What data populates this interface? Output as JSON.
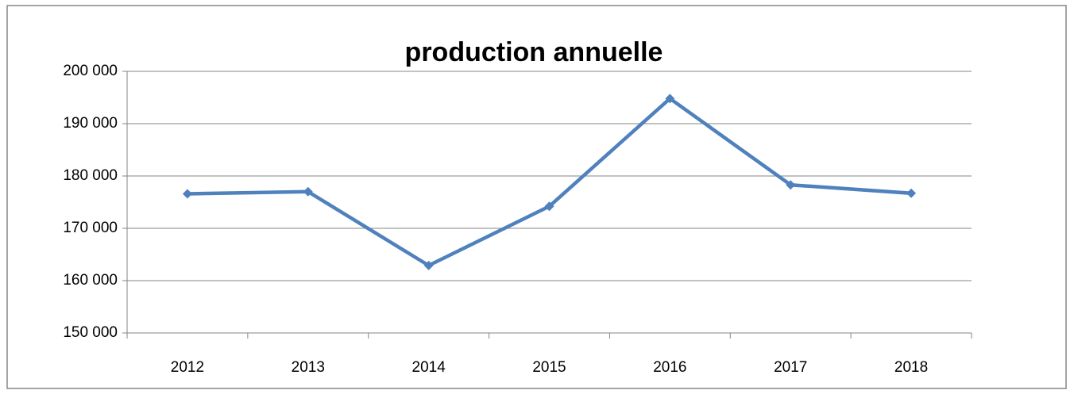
{
  "chart_data": {
    "type": "line",
    "title": "production annuelle",
    "categories": [
      "2012",
      "2013",
      "2014",
      "2015",
      "2016",
      "2017",
      "2018"
    ],
    "series": [
      {
        "name": "production",
        "color": "#4f81bd",
        "values": [
          176600,
          177000,
          162900,
          174200,
          194800,
          178300,
          176700
        ]
      }
    ],
    "ylim": [
      150000,
      200000
    ],
    "yticks": [
      {
        "value": 150000,
        "label": "150 000"
      },
      {
        "value": 160000,
        "label": "160 000"
      },
      {
        "value": 170000,
        "label": "170 000"
      },
      {
        "value": 180000,
        "label": "180 000"
      },
      {
        "value": 190000,
        "label": "190 000"
      },
      {
        "value": 200000,
        "label": "200 000"
      }
    ],
    "grid": true
  }
}
